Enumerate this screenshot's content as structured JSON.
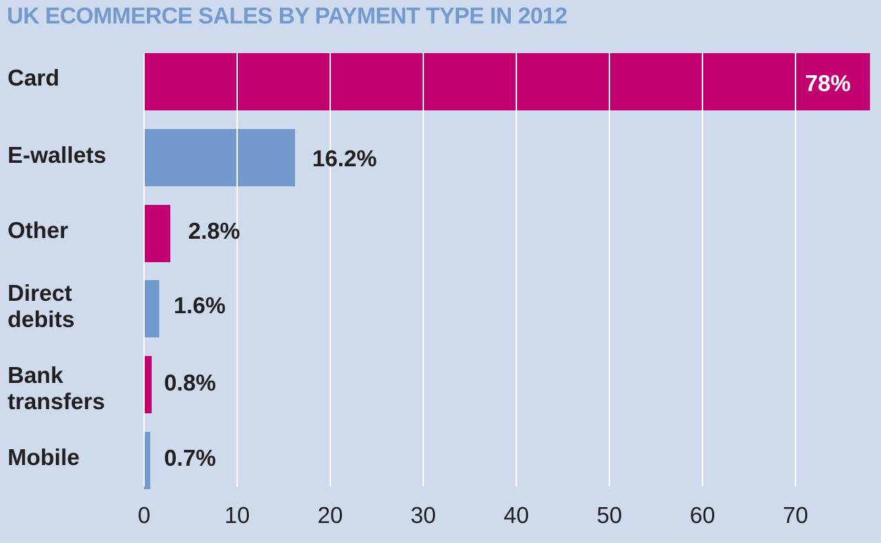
{
  "title": "UK ECOMMERCE SALES BY PAYMENT TYPE IN 2012",
  "colors": {
    "background": "#cfdaed",
    "magenta": "#c3006f",
    "blue": "#729acf",
    "title": "#729acf",
    "text": "#231f20"
  },
  "chart_data": {
    "type": "bar",
    "orientation": "horizontal",
    "title": "UK ECOMMERCE SALES BY PAYMENT TYPE IN 2012",
    "xlabel": "",
    "ylabel": "",
    "categories": [
      "Card",
      "E-wallets",
      "Other",
      "Direct debits",
      "Bank transfers",
      "Mobile"
    ],
    "values": [
      78,
      16.2,
      2.8,
      1.6,
      0.8,
      0.7
    ],
    "value_labels": [
      "78%",
      "16.2%",
      "2.8%",
      "1.6%",
      "0.8%",
      "0.7%"
    ],
    "bar_colors": [
      "#c3006f",
      "#729acf",
      "#c3006f",
      "#729acf",
      "#c3006f",
      "#729acf"
    ],
    "xlim": [
      0,
      78
    ],
    "xticks": [
      0,
      10,
      20,
      30,
      40,
      50,
      60,
      70
    ],
    "grid": true,
    "legend": null
  },
  "labels": {
    "card": "Card",
    "ewallets": "E-wallets",
    "other": "Other",
    "direct_1": "Direct",
    "direct_2": "debits",
    "bank_1": "Bank",
    "bank_2": "transfers",
    "mobile": "Mobile"
  },
  "ticks": [
    "0",
    "10",
    "20",
    "30",
    "40",
    "50",
    "60",
    "70"
  ]
}
